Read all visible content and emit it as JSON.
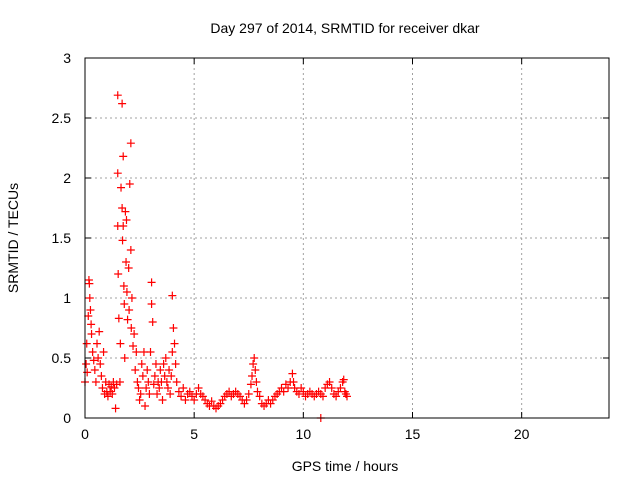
{
  "chart_data": {
    "type": "scatter",
    "title": "Day 297 of 2014, SRMTID for receiver dkar",
    "xlabel": "GPS time / hours",
    "ylabel": "SRMTID / TECUs",
    "xlim": [
      0,
      24
    ],
    "ylim": [
      0,
      3
    ],
    "xticks": [
      "0",
      "5",
      "10",
      "15",
      "20"
    ],
    "xtick_values": [
      0,
      5,
      10,
      15,
      20
    ],
    "yticks": [
      "0",
      "0.5",
      "1",
      "1.5",
      "2",
      "2.5",
      "3"
    ],
    "ytick_values": [
      0,
      0.5,
      1,
      1.5,
      2,
      2.5,
      3
    ],
    "grid": true,
    "marker": "plus",
    "color": "#ff0000",
    "series": [
      {
        "name": "SRMTID",
        "points": [
          [
            0.0,
            0.3
          ],
          [
            0.05,
            0.45
          ],
          [
            0.08,
            0.62
          ],
          [
            0.1,
            0.38
          ],
          [
            0.15,
            0.85
          ],
          [
            0.18,
            1.15
          ],
          [
            0.2,
            1.12
          ],
          [
            0.22,
            1.0
          ],
          [
            0.25,
            0.9
          ],
          [
            0.28,
            0.78
          ],
          [
            0.3,
            0.7
          ],
          [
            0.35,
            0.55
          ],
          [
            0.4,
            0.48
          ],
          [
            0.45,
            0.4
          ],
          [
            0.5,
            0.3
          ],
          [
            0.55,
            0.62
          ],
          [
            0.6,
            0.5
          ],
          [
            0.65,
            0.72
          ],
          [
            0.7,
            0.45
          ],
          [
            0.75,
            0.35
          ],
          [
            0.8,
            0.25
          ],
          [
            0.85,
            0.55
          ],
          [
            0.9,
            0.2
          ],
          [
            0.95,
            0.3
          ],
          [
            1.0,
            0.22
          ],
          [
            1.05,
            0.18
          ],
          [
            1.1,
            0.28
          ],
          [
            1.15,
            0.22
          ],
          [
            1.2,
            0.26
          ],
          [
            1.25,
            0.2
          ],
          [
            1.3,
            0.3
          ],
          [
            1.35,
            0.25
          ],
          [
            1.4,
            0.08
          ],
          [
            1.45,
            0.28
          ],
          [
            1.5,
            2.69
          ],
          [
            1.5,
            2.04
          ],
          [
            1.5,
            1.6
          ],
          [
            1.52,
            1.2
          ],
          [
            1.55,
            0.83
          ],
          [
            1.6,
            0.3
          ],
          [
            1.62,
            0.62
          ],
          [
            1.65,
            1.92
          ],
          [
            1.7,
            2.62
          ],
          [
            1.7,
            1.75
          ],
          [
            1.72,
            1.48
          ],
          [
            1.75,
            2.18
          ],
          [
            1.75,
            1.6
          ],
          [
            1.78,
            1.1
          ],
          [
            1.8,
            0.95
          ],
          [
            1.82,
            0.5
          ],
          [
            1.85,
            1.72
          ],
          [
            1.88,
            1.3
          ],
          [
            1.9,
            1.65
          ],
          [
            1.92,
            1.05
          ],
          [
            1.95,
            0.82
          ],
          [
            2.0,
            1.25
          ],
          [
            2.02,
            0.9
          ],
          [
            2.05,
            1.95
          ],
          [
            2.1,
            2.29
          ],
          [
            2.1,
            1.4
          ],
          [
            2.12,
            0.75
          ],
          [
            2.15,
            1.0
          ],
          [
            2.2,
            0.6
          ],
          [
            2.25,
            0.7
          ],
          [
            2.3,
            0.4
          ],
          [
            2.35,
            0.55
          ],
          [
            2.4,
            0.3
          ],
          [
            2.45,
            0.25
          ],
          [
            2.5,
            0.15
          ],
          [
            2.55,
            0.2
          ],
          [
            2.6,
            0.45
          ],
          [
            2.65,
            0.35
          ],
          [
            2.7,
            0.55
          ],
          [
            2.75,
            0.1
          ],
          [
            2.8,
            0.25
          ],
          [
            2.85,
            0.4
          ],
          [
            2.9,
            0.3
          ],
          [
            2.95,
            0.2
          ],
          [
            3.0,
            0.55
          ],
          [
            3.05,
            0.95
          ],
          [
            3.05,
            1.13
          ],
          [
            3.1,
            0.8
          ],
          [
            3.15,
            0.28
          ],
          [
            3.2,
            0.35
          ],
          [
            3.25,
            0.45
          ],
          [
            3.3,
            0.2
          ],
          [
            3.35,
            0.3
          ],
          [
            3.4,
            0.25
          ],
          [
            3.45,
            0.4
          ],
          [
            3.5,
            0.3
          ],
          [
            3.55,
            0.15
          ],
          [
            3.6,
            0.45
          ],
          [
            3.65,
            0.35
          ],
          [
            3.7,
            0.5
          ],
          [
            3.75,
            0.3
          ],
          [
            3.8,
            0.25
          ],
          [
            3.85,
            0.4
          ],
          [
            3.9,
            0.2
          ],
          [
            3.95,
            0.35
          ],
          [
            4.0,
            0.55
          ],
          [
            4.0,
            1.02
          ],
          [
            4.05,
            0.75
          ],
          [
            4.1,
            0.62
          ],
          [
            4.15,
            0.45
          ],
          [
            4.2,
            0.3
          ],
          [
            4.3,
            0.22
          ],
          [
            4.4,
            0.18
          ],
          [
            4.5,
            0.25
          ],
          [
            4.6,
            0.15
          ],
          [
            4.7,
            0.2
          ],
          [
            4.8,
            0.22
          ],
          [
            4.9,
            0.18
          ],
          [
            5.0,
            0.15
          ],
          [
            5.1,
            0.2
          ],
          [
            5.2,
            0.25
          ],
          [
            5.3,
            0.2
          ],
          [
            5.4,
            0.18
          ],
          [
            5.5,
            0.15
          ],
          [
            5.6,
            0.12
          ],
          [
            5.7,
            0.1
          ],
          [
            5.8,
            0.14
          ],
          [
            5.9,
            0.1
          ],
          [
            6.0,
            0.08
          ],
          [
            6.1,
            0.1
          ],
          [
            6.2,
            0.12
          ],
          [
            6.3,
            0.15
          ],
          [
            6.4,
            0.18
          ],
          [
            6.5,
            0.2
          ],
          [
            6.6,
            0.22
          ],
          [
            6.7,
            0.18
          ],
          [
            6.8,
            0.2
          ],
          [
            6.9,
            0.22
          ],
          [
            7.0,
            0.2
          ],
          [
            7.1,
            0.18
          ],
          [
            7.2,
            0.15
          ],
          [
            7.3,
            0.12
          ],
          [
            7.4,
            0.15
          ],
          [
            7.5,
            0.2
          ],
          [
            7.6,
            0.28
          ],
          [
            7.65,
            0.35
          ],
          [
            7.7,
            0.45
          ],
          [
            7.75,
            0.5
          ],
          [
            7.8,
            0.4
          ],
          [
            7.85,
            0.3
          ],
          [
            7.9,
            0.22
          ],
          [
            8.0,
            0.18
          ],
          [
            8.1,
            0.12
          ],
          [
            8.2,
            0.1
          ],
          [
            8.3,
            0.12
          ],
          [
            8.4,
            0.15
          ],
          [
            8.5,
            0.12
          ],
          [
            8.6,
            0.15
          ],
          [
            8.7,
            0.18
          ],
          [
            8.8,
            0.2
          ],
          [
            8.9,
            0.22
          ],
          [
            9.0,
            0.25
          ],
          [
            9.1,
            0.22
          ],
          [
            9.2,
            0.28
          ],
          [
            9.3,
            0.25
          ],
          [
            9.4,
            0.3
          ],
          [
            9.5,
            0.37
          ],
          [
            9.55,
            0.3
          ],
          [
            9.6,
            0.25
          ],
          [
            9.7,
            0.22
          ],
          [
            9.8,
            0.2
          ],
          [
            9.9,
            0.25
          ],
          [
            10.0,
            0.22
          ],
          [
            10.1,
            0.18
          ],
          [
            10.2,
            0.2
          ],
          [
            10.3,
            0.22
          ],
          [
            10.4,
            0.2
          ],
          [
            10.5,
            0.18
          ],
          [
            10.6,
            0.2
          ],
          [
            10.7,
            0.22
          ],
          [
            10.8,
            0.0
          ],
          [
            10.8,
            0.2
          ],
          [
            10.9,
            0.18
          ],
          [
            11.0,
            0.25
          ],
          [
            11.1,
            0.28
          ],
          [
            11.2,
            0.3
          ],
          [
            11.3,
            0.25
          ],
          [
            11.4,
            0.2
          ],
          [
            11.5,
            0.18
          ],
          [
            11.6,
            0.22
          ],
          [
            11.7,
            0.25
          ],
          [
            11.8,
            0.3
          ],
          [
            11.85,
            0.32
          ],
          [
            11.9,
            0.22
          ],
          [
            11.95,
            0.2
          ],
          [
            12.0,
            0.18
          ]
        ]
      }
    ]
  }
}
